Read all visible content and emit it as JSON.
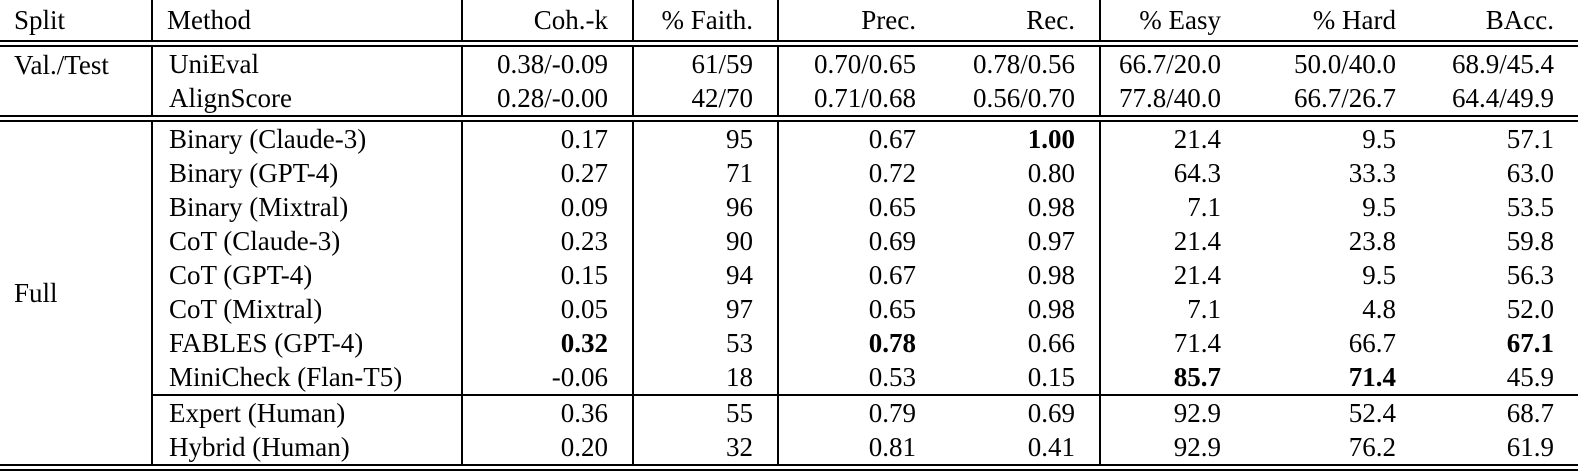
{
  "table": {
    "columns": [
      {
        "label": "Split"
      },
      {
        "label": "Method"
      },
      {
        "label": "Coh.-k"
      },
      {
        "label": "% Faith."
      },
      {
        "label": "Prec."
      },
      {
        "label": "Rec."
      },
      {
        "label": "% Easy"
      },
      {
        "label": "% Hard"
      },
      {
        "label": "BAcc."
      }
    ],
    "sections": [
      {
        "split": "Val./Test",
        "rows": [
          {
            "method": "UniEval",
            "values": [
              "0.38/-0.09",
              "61/59",
              "0.70/0.65",
              "0.78/0.56",
              "66.7/20.0",
              "50.0/40.0",
              "68.9/45.4"
            ],
            "bold": []
          },
          {
            "method": "AlignScore",
            "values": [
              "0.28/-0.00",
              "42/70",
              "0.71/0.68",
              "0.56/0.70",
              "77.8/40.0",
              "66.7/26.7",
              "64.4/49.9"
            ],
            "bold": []
          }
        ]
      },
      {
        "split": "Full",
        "rows": [
          {
            "method": "Binary (Claude-3)",
            "values": [
              "0.17",
              "95",
              "0.67",
              "1.00",
              "21.4",
              "9.5",
              "57.1"
            ],
            "bold": [
              3
            ]
          },
          {
            "method": "Binary (GPT-4)",
            "values": [
              "0.27",
              "71",
              "0.72",
              "0.80",
              "64.3",
              "33.3",
              "63.0"
            ],
            "bold": []
          },
          {
            "method": "Binary (Mixtral)",
            "values": [
              "0.09",
              "96",
              "0.65",
              "0.98",
              "7.1",
              "9.5",
              "53.5"
            ],
            "bold": []
          },
          {
            "method": "CoT (Claude-3)",
            "values": [
              "0.23",
              "90",
              "0.69",
              "0.97",
              "21.4",
              "23.8",
              "59.8"
            ],
            "bold": []
          },
          {
            "method": "CoT (GPT-4)",
            "values": [
              "0.15",
              "94",
              "0.67",
              "0.98",
              "21.4",
              "9.5",
              "56.3"
            ],
            "bold": []
          },
          {
            "method": "CoT (Mixtral)",
            "values": [
              "0.05",
              "97",
              "0.65",
              "0.98",
              "7.1",
              "4.8",
              "52.0"
            ],
            "bold": []
          },
          {
            "method": "FABLES (GPT-4)",
            "values": [
              "0.32",
              "53",
              "0.78",
              "0.66",
              "71.4",
              "66.7",
              "67.1"
            ],
            "bold": [
              0,
              2,
              6
            ]
          },
          {
            "method": "MiniCheck (Flan-T5)",
            "values": [
              "-0.06",
              "18",
              "0.53",
              "0.15",
              "85.7",
              "71.4",
              "45.9"
            ],
            "bold": [
              4,
              5
            ]
          },
          {
            "method": "Expert (Human)",
            "values": [
              "0.36",
              "55",
              "0.79",
              "0.69",
              "92.9",
              "52.4",
              "68.7"
            ],
            "bold": [],
            "rule_above": true
          },
          {
            "method": "Hybrid (Human)",
            "values": [
              "0.20",
              "32",
              "0.81",
              "0.41",
              "92.9",
              "76.2",
              "61.9"
            ],
            "bold": []
          }
        ]
      }
    ]
  }
}
